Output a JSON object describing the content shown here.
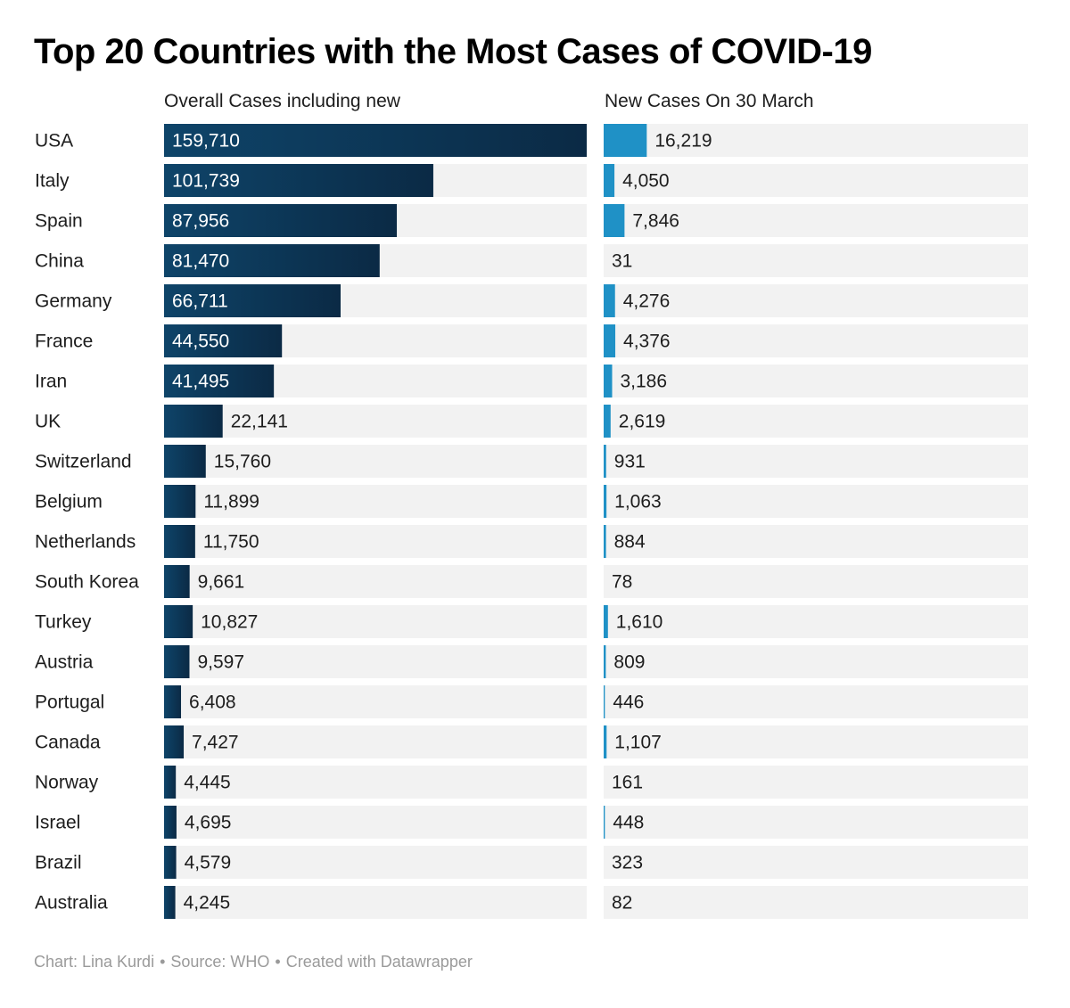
{
  "title": "Top 20 Countries with the Most Cases of COVID-19",
  "colors": {
    "overall_bar_dark": "#0b2a45",
    "overall_bar_light": "#0e4469",
    "new_bar": "#1f91c6",
    "track": "#f2f2f2",
    "label_on_bar": "#ffffff",
    "label_off_bar": "#1d1d1d"
  },
  "chart_data": {
    "type": "bar",
    "categories": [
      "USA",
      "Italy",
      "Spain",
      "China",
      "Germany",
      "France",
      "Iran",
      "UK",
      "Switzerland",
      "Belgium",
      "Netherlands",
      "South Korea",
      "Turkey",
      "Austria",
      "Portugal",
      "Canada",
      "Norway",
      "Israel",
      "Brazil",
      "Australia"
    ],
    "series": [
      {
        "name": "Overall Cases including new",
        "values": [
          159710,
          101739,
          87956,
          81470,
          66711,
          44550,
          41495,
          22141,
          15760,
          11899,
          11750,
          9661,
          10827,
          9597,
          6408,
          7427,
          4445,
          4695,
          4579,
          4245
        ],
        "labels": [
          "159,710",
          "101,739",
          "87,956",
          "81,470",
          "66,711",
          "44,550",
          "41,495",
          "22,141",
          "15,760",
          "11,899",
          "11,750",
          "9,661",
          "10,827",
          "9,597",
          "6,408",
          "7,427",
          "4,445",
          "4,695",
          "4,579",
          "4,245"
        ],
        "xlim": [
          0,
          159710
        ]
      },
      {
        "name": "New Cases On 30 March",
        "values": [
          16219,
          4050,
          7846,
          31,
          4276,
          4376,
          3186,
          2619,
          931,
          1063,
          884,
          78,
          1610,
          809,
          446,
          1107,
          161,
          448,
          323,
          82
        ],
        "labels": [
          "16,219",
          "4,050",
          "7,846",
          "31",
          "4,276",
          "4,376",
          "3,186",
          "2,619",
          "931",
          "1,063",
          "884",
          "78",
          "1,610",
          "809",
          "446",
          "1,107",
          "161",
          "448",
          "323",
          "82"
        ],
        "xlim": [
          0,
          159710
        ]
      }
    ],
    "grid": false,
    "legend": "none"
  },
  "footer": {
    "credit": "Chart: Lina Kurdi",
    "source": "Source: WHO",
    "tool": "Created with Datawrapper",
    "separator": "•"
  }
}
